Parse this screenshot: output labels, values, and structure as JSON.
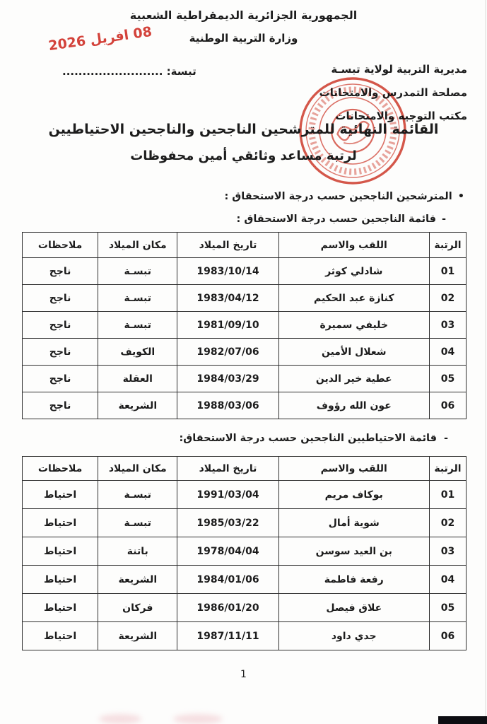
{
  "page": {
    "header_line1": "الجمهورية الجزائرية الديمقراطية الشعبية",
    "header_line2": "وزارة التربية الوطنية",
    "date_stamp": "08 افريل 2026",
    "org_line1": "مديرية التربية لولاية تبسـة",
    "org_line2": "مصلحة التمدرس والامتحانات",
    "org_line3": "مكتب التوجيه والامتحانات",
    "place_line": "تبسة: .........................",
    "title_line1": "القائمة النهائية للمترشحين الناجحين والناجحين الاحتياطيين",
    "title_line2": "لرتبة مساعد وثائقي أمين محفوظات",
    "bullet1_marker": "•",
    "bullet1": "المترشحين الناجحين حسب درجة الاستحقاق :",
    "bullet2_marker": "-",
    "bullet2": "قائمة الناجحين حسب درجة الاستحقاق :",
    "bullet3_marker": "-",
    "bullet3": "قائمة الاحتياطيين الناجحين حسب درجة الاستحقاق:",
    "page_number": "1"
  },
  "colors": {
    "stamp_red": "#cf2e26",
    "text": "#1c1c1c"
  },
  "tables": {
    "columns": [
      "الرتبة",
      "اللقب والاسم",
      "تاريخ الميلاد",
      "مكان الميلاد",
      "ملاحظات"
    ],
    "successful": {
      "rows": [
        [
          "01",
          "شادلي كوثر",
          "1983/10/14",
          "تبسـة",
          "ناجح"
        ],
        [
          "02",
          "كنازة عبد الحكيم",
          "1983/04/12",
          "تبسـة",
          "ناجح"
        ],
        [
          "03",
          "خليفي سميرة",
          "1981/09/10",
          "تبسـة",
          "ناجح"
        ],
        [
          "04",
          "شعلال الأمين",
          "1982/07/06",
          "الكويف",
          "ناجح"
        ],
        [
          "05",
          "عطية خير الدين",
          "1984/03/29",
          "العقلة",
          "ناجح"
        ],
        [
          "06",
          "عون الله رؤوف",
          "1988/03/06",
          "الشريعة",
          "ناجح"
        ]
      ]
    },
    "reserve": {
      "rows": [
        [
          "01",
          "بوكاف مريم",
          "1991/03/04",
          "تبسـة",
          "احتياط"
        ],
        [
          "02",
          "شوية أمال",
          "1985/03/22",
          "تبسـة",
          "احتياط"
        ],
        [
          "03",
          "بن العيد سوسن",
          "1978/04/04",
          "باتنة",
          "احتياط"
        ],
        [
          "04",
          "رفعة فاطمة",
          "1984/01/06",
          "الشريعة",
          "احتياط"
        ],
        [
          "05",
          "علاق فيصل",
          "1986/01/20",
          "فركان",
          "احتياط"
        ],
        [
          "06",
          "جدي داود",
          "1987/11/11",
          "الشريعة",
          "احتياط"
        ]
      ]
    }
  }
}
